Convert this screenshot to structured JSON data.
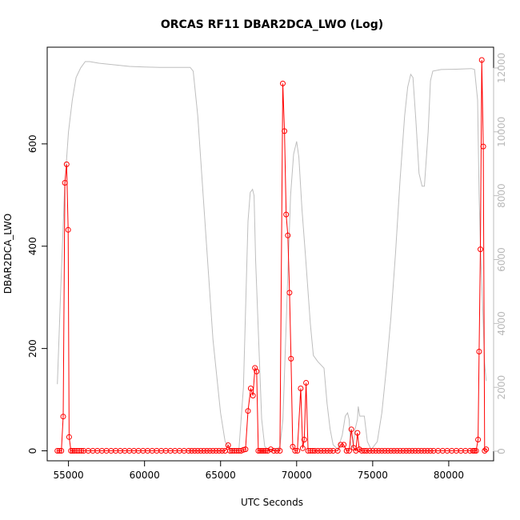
{
  "chart_data": {
    "type": "line",
    "title": "ORCAS RF11 DBAR2DCA_LWO (Log)",
    "xlabel": "UTC Seconds",
    "ylabel": "DBAR2DCA_LWO",
    "xlim": [
      53600,
      82950
    ],
    "ylim": [
      -19.5,
      789
    ],
    "y2lim": [
      -300,
      12650
    ],
    "x_ticks": [
      55000,
      60000,
      65000,
      70000,
      75000,
      80000
    ],
    "y_ticks": [
      0,
      200,
      400,
      600
    ],
    "y2_ticks": [
      0,
      2000,
      4000,
      6000,
      8000,
      10000,
      12000
    ],
    "x_tick_labels": [
      "55000",
      "60000",
      "65000",
      "70000",
      "75000",
      "80000"
    ],
    "y_tick_labels": [
      "0",
      "200",
      "400",
      "600"
    ],
    "y2_tick_labels": [
      "0",
      "2000",
      "4000",
      "6000",
      "8000",
      "10000",
      "12000"
    ],
    "colors": {
      "primary": "#ff0000",
      "secondary": "#bebebe",
      "axis": "#000000"
    },
    "series": [
      {
        "axis": "left",
        "style": "line+points",
        "color": "#ff0000",
        "points": [
          [
            54270,
            0
          ],
          [
            54400,
            0
          ],
          [
            54530,
            0
          ],
          [
            54650,
            67
          ],
          [
            54760,
            524
          ],
          [
            54880,
            560
          ],
          [
            54980,
            432
          ],
          [
            55040,
            27
          ],
          [
            55160,
            0
          ],
          [
            55280,
            0
          ],
          [
            55400,
            0
          ],
          [
            55550,
            0
          ],
          [
            55700,
            0
          ],
          [
            55850,
            0
          ],
          [
            56000,
            0
          ],
          [
            56300,
            0
          ],
          [
            56600,
            0
          ],
          [
            56900,
            0
          ],
          [
            57200,
            0
          ],
          [
            57500,
            0
          ],
          [
            57800,
            0
          ],
          [
            58100,
            0
          ],
          [
            58400,
            0
          ],
          [
            58700,
            0
          ],
          [
            59000,
            0
          ],
          [
            59300,
            0
          ],
          [
            59600,
            0
          ],
          [
            59900,
            0
          ],
          [
            60200,
            0
          ],
          [
            60500,
            0
          ],
          [
            60800,
            0
          ],
          [
            61100,
            0
          ],
          [
            61400,
            0
          ],
          [
            61700,
            0
          ],
          [
            62000,
            0
          ],
          [
            62300,
            0
          ],
          [
            62600,
            0
          ],
          [
            62900,
            0
          ],
          [
            63100,
            0
          ],
          [
            63300,
            0
          ],
          [
            63500,
            0
          ],
          [
            63700,
            0
          ],
          [
            63900,
            0
          ],
          [
            64100,
            0
          ],
          [
            64300,
            0
          ],
          [
            64500,
            0
          ],
          [
            64700,
            0
          ],
          [
            64900,
            0
          ],
          [
            65100,
            0
          ],
          [
            65300,
            0
          ],
          [
            65500,
            11
          ],
          [
            65620,
            0
          ],
          [
            65750,
            0
          ],
          [
            65900,
            0
          ],
          [
            66050,
            0
          ],
          [
            66200,
            0
          ],
          [
            66350,
            0
          ],
          [
            66500,
            2
          ],
          [
            66640,
            3
          ],
          [
            66800,
            78
          ],
          [
            66980,
            122
          ],
          [
            67130,
            108
          ],
          [
            67260,
            162
          ],
          [
            67370,
            155
          ],
          [
            67480,
            0
          ],
          [
            67600,
            0
          ],
          [
            67720,
            0
          ],
          [
            67840,
            0
          ],
          [
            67960,
            0
          ],
          [
            68100,
            0
          ],
          [
            68300,
            3
          ],
          [
            68500,
            0
          ],
          [
            68700,
            0
          ],
          [
            68900,
            0
          ],
          [
            69090,
            718
          ],
          [
            69200,
            625
          ],
          [
            69310,
            462
          ],
          [
            69420,
            421
          ],
          [
            69530,
            309
          ],
          [
            69630,
            180
          ],
          [
            69740,
            8
          ],
          [
            69900,
            0
          ],
          [
            70050,
            0
          ],
          [
            70270,
            122
          ],
          [
            70400,
            5
          ],
          [
            70500,
            22
          ],
          [
            70620,
            133
          ],
          [
            70750,
            0
          ],
          [
            70900,
            0
          ],
          [
            71050,
            0
          ],
          [
            71200,
            0
          ],
          [
            71400,
            0
          ],
          [
            71600,
            0
          ],
          [
            71800,
            0
          ],
          [
            72000,
            0
          ],
          [
            72200,
            0
          ],
          [
            72400,
            0
          ],
          [
            72700,
            0
          ],
          [
            72900,
            12
          ],
          [
            73100,
            12
          ],
          [
            73280,
            0
          ],
          [
            73450,
            0
          ],
          [
            73600,
            42
          ],
          [
            73750,
            6
          ],
          [
            73900,
            0
          ],
          [
            74000,
            35
          ],
          [
            74120,
            3
          ],
          [
            74280,
            0
          ],
          [
            74450,
            0
          ],
          [
            74600,
            0
          ],
          [
            74800,
            0
          ],
          [
            75000,
            0
          ],
          [
            75200,
            0
          ],
          [
            75400,
            0
          ],
          [
            75600,
            0
          ],
          [
            75800,
            0
          ],
          [
            76000,
            0
          ],
          [
            76200,
            0
          ],
          [
            76400,
            0
          ],
          [
            76600,
            0
          ],
          [
            76800,
            0
          ],
          [
            77000,
            0
          ],
          [
            77200,
            0
          ],
          [
            77400,
            0
          ],
          [
            77600,
            0
          ],
          [
            77800,
            0
          ],
          [
            78000,
            0
          ],
          [
            78200,
            0
          ],
          [
            78400,
            0
          ],
          [
            78600,
            0
          ],
          [
            78800,
            0
          ],
          [
            79000,
            0
          ],
          [
            79300,
            0
          ],
          [
            79600,
            0
          ],
          [
            79900,
            0
          ],
          [
            80200,
            0
          ],
          [
            80500,
            0
          ],
          [
            80800,
            0
          ],
          [
            81100,
            0
          ],
          [
            81400,
            0
          ],
          [
            81600,
            0
          ],
          [
            81700,
            0
          ],
          [
            81800,
            0
          ],
          [
            81930,
            22
          ],
          [
            82000,
            194
          ],
          [
            82080,
            394
          ],
          [
            82170,
            764
          ],
          [
            82270,
            595
          ],
          [
            82360,
            0
          ],
          [
            82460,
            3
          ]
        ]
      },
      {
        "axis": "right",
        "style": "line",
        "color": "#bebebe",
        "points": [
          [
            54270,
            2100
          ],
          [
            54500,
            5200
          ],
          [
            54750,
            8300
          ],
          [
            55000,
            10000
          ],
          [
            55250,
            11000
          ],
          [
            55500,
            11700
          ],
          [
            55800,
            12000
          ],
          [
            56100,
            12200
          ],
          [
            56400,
            12200
          ],
          [
            57000,
            12150
          ],
          [
            58000,
            12100
          ],
          [
            59000,
            12050
          ],
          [
            60000,
            12030
          ],
          [
            61000,
            12020
          ],
          [
            62000,
            12020
          ],
          [
            63000,
            12020
          ],
          [
            63200,
            11900
          ],
          [
            63500,
            10500
          ],
          [
            64000,
            7000
          ],
          [
            64500,
            3500
          ],
          [
            65000,
            1200
          ],
          [
            65300,
            300
          ],
          [
            65700,
            50
          ],
          [
            66000,
            20
          ],
          [
            66200,
            40
          ],
          [
            66500,
            2000
          ],
          [
            66800,
            7200
          ],
          [
            66950,
            8100
          ],
          [
            67100,
            8200
          ],
          [
            67200,
            8000
          ],
          [
            67300,
            6000
          ],
          [
            67500,
            3500
          ],
          [
            67700,
            1000
          ],
          [
            67900,
            150
          ],
          [
            68100,
            60
          ],
          [
            68400,
            40
          ],
          [
            68700,
            60
          ],
          [
            68900,
            150
          ],
          [
            69100,
            1000
          ],
          [
            69350,
            4500
          ],
          [
            69600,
            8000
          ],
          [
            69800,
            9300
          ],
          [
            70000,
            9700
          ],
          [
            70150,
            9200
          ],
          [
            70350,
            7600
          ],
          [
            70600,
            6000
          ],
          [
            70900,
            4000
          ],
          [
            71100,
            3000
          ],
          [
            71400,
            2800
          ],
          [
            71800,
            2600
          ],
          [
            72000,
            1500
          ],
          [
            72200,
            700
          ],
          [
            72400,
            200
          ],
          [
            72700,
            60
          ],
          [
            73000,
            500
          ],
          [
            73200,
            1100
          ],
          [
            73350,
            1200
          ],
          [
            73450,
            1000
          ],
          [
            73550,
            200
          ],
          [
            73700,
            100
          ],
          [
            73850,
            700
          ],
          [
            74000,
            1000
          ],
          [
            74050,
            1400
          ],
          [
            74150,
            1100
          ],
          [
            74450,
            1100
          ],
          [
            74650,
            300
          ],
          [
            74900,
            50
          ],
          [
            75300,
            300
          ],
          [
            75600,
            1200
          ],
          [
            75900,
            2600
          ],
          [
            76200,
            4200
          ],
          [
            76500,
            6200
          ],
          [
            76800,
            8500
          ],
          [
            77100,
            10500
          ],
          [
            77300,
            11400
          ],
          [
            77500,
            11800
          ],
          [
            77650,
            11700
          ],
          [
            77850,
            10300
          ],
          [
            78050,
            8700
          ],
          [
            78250,
            8300
          ],
          [
            78400,
            8300
          ],
          [
            78650,
            10000
          ],
          [
            78800,
            11600
          ],
          [
            78950,
            11900
          ],
          [
            79500,
            11950
          ],
          [
            80500,
            11960
          ],
          [
            81000,
            11970
          ],
          [
            81500,
            11980
          ],
          [
            81700,
            11950
          ],
          [
            81900,
            11000
          ],
          [
            82000,
            8000
          ],
          [
            82100,
            6200
          ],
          [
            82250,
            4300
          ],
          [
            82350,
            2800
          ],
          [
            82460,
            2200
          ]
        ]
      }
    ]
  }
}
